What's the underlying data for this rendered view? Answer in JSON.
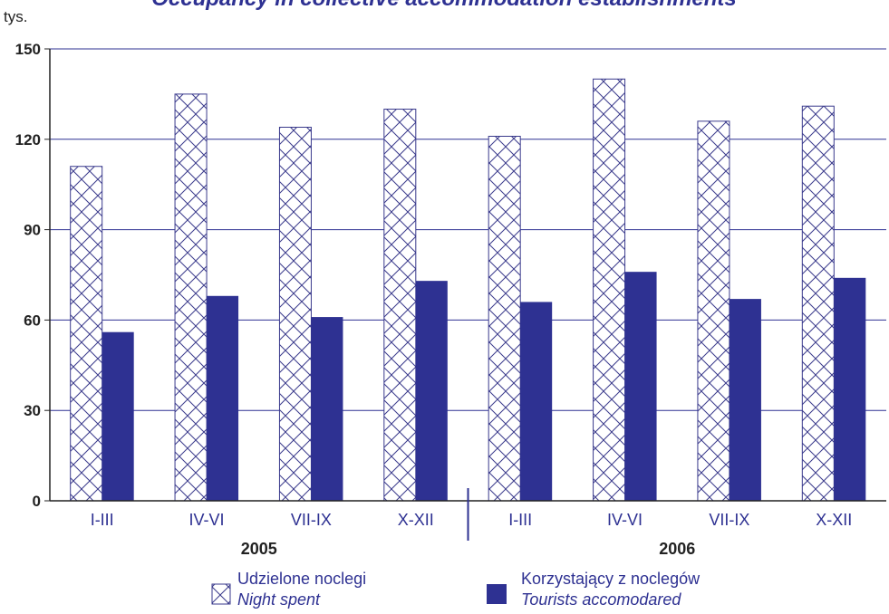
{
  "chart_data": {
    "type": "bar",
    "title": "Occupancy in collective accommodation establishments",
    "unit_label": "tys.",
    "ylim": [
      0,
      150
    ],
    "yticks": [
      0,
      30,
      60,
      90,
      120,
      150
    ],
    "grid": true,
    "categories": [
      "I-III",
      "IV-VI",
      "VII-IX",
      "X-XII",
      "I-III",
      "IV-VI",
      "VII-IX",
      "X-XII"
    ],
    "groups": [
      {
        "label": "2005",
        "categories": [
          "I-III",
          "IV-VI",
          "VII-IX",
          "X-XII"
        ]
      },
      {
        "label": "2006",
        "categories": [
          "I-III",
          "IV-VI",
          "VII-IX",
          "X-XII"
        ]
      }
    ],
    "series": [
      {
        "name": "Udzielone noclegi",
        "name_en": "Night spent",
        "pattern": "crosshatch",
        "values": [
          111,
          135,
          124,
          130,
          121,
          140,
          126,
          131
        ]
      },
      {
        "name": "Korzystający z noclegów",
        "name_en": "Tourists accomodared",
        "color": "#2e3192",
        "values": [
          56,
          68,
          61,
          73,
          66,
          76,
          67,
          74
        ]
      }
    ],
    "legend_position": "bottom"
  },
  "colors": {
    "accent": "#2e3192",
    "grid": "#2e3192",
    "pattern_stroke": "#3a3a8c"
  }
}
